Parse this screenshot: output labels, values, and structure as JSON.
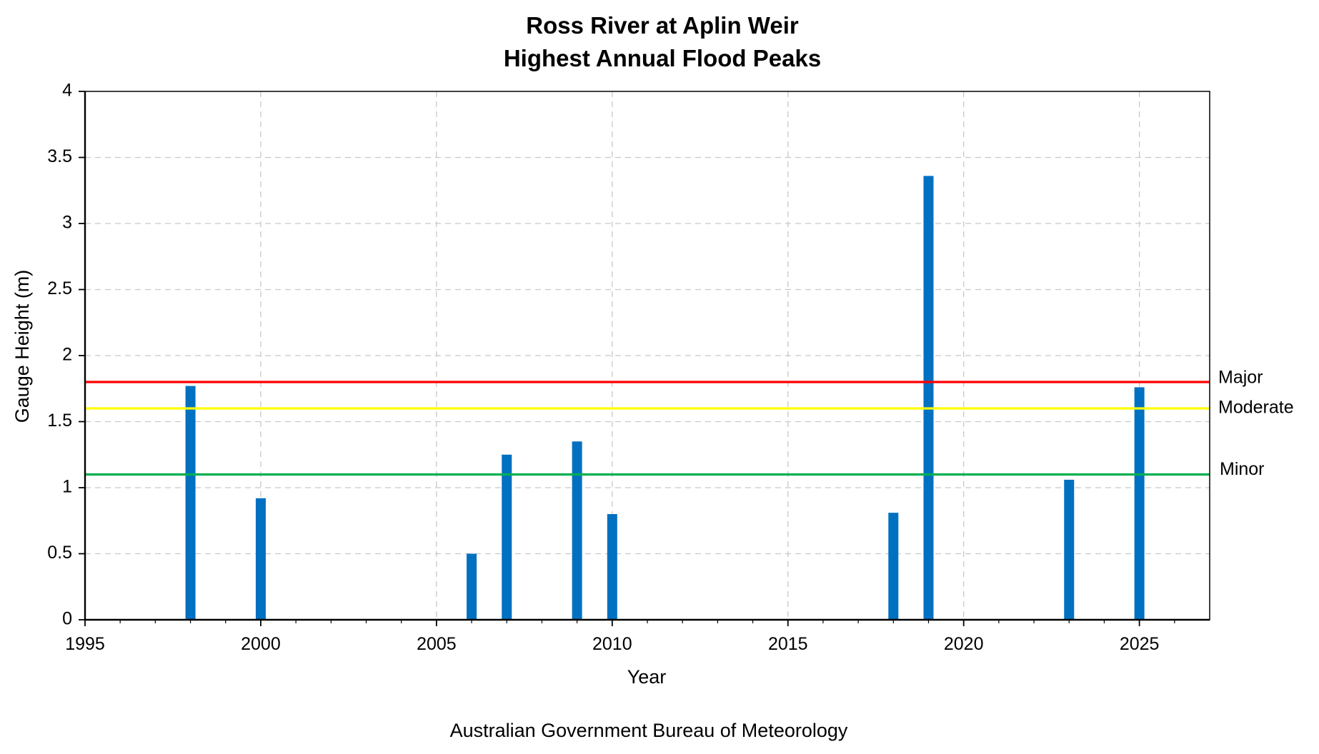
{
  "chart_data": {
    "type": "bar",
    "title": [
      "Ross River at Aplin Weir",
      "Highest Annual Flood Peaks"
    ],
    "xlabel": "Year",
    "ylabel": "Gauge Height (m)",
    "xlim": [
      1995,
      2027
    ],
    "ylim": [
      0,
      4
    ],
    "x_ticks": [
      "1995",
      "2000",
      "2005",
      "2010",
      "2015",
      "2020",
      "2025"
    ],
    "y_ticks": [
      "0",
      "0.5",
      "1",
      "1.5",
      "2",
      "2.5",
      "3",
      "3.5",
      "4"
    ],
    "grid": true,
    "grid_style": "dashed",
    "bar_color": "#0070c0",
    "x": [
      1998,
      2000,
      2006,
      2007,
      2009,
      2010,
      2018,
      2019,
      2023,
      2025
    ],
    "values": [
      1.77,
      0.92,
      0.5,
      1.25,
      1.35,
      0.8,
      0.81,
      3.36,
      1.06,
      1.76
    ],
    "thresholds": [
      {
        "label": "Major",
        "value": 1.8,
        "color": "#ff0000"
      },
      {
        "label": "Moderate",
        "value": 1.6,
        "color": "#ffff00"
      },
      {
        "label": "Minor",
        "value": 1.1,
        "color": "#00b050"
      }
    ]
  },
  "footer": "Australian Government Bureau of Meteorology"
}
